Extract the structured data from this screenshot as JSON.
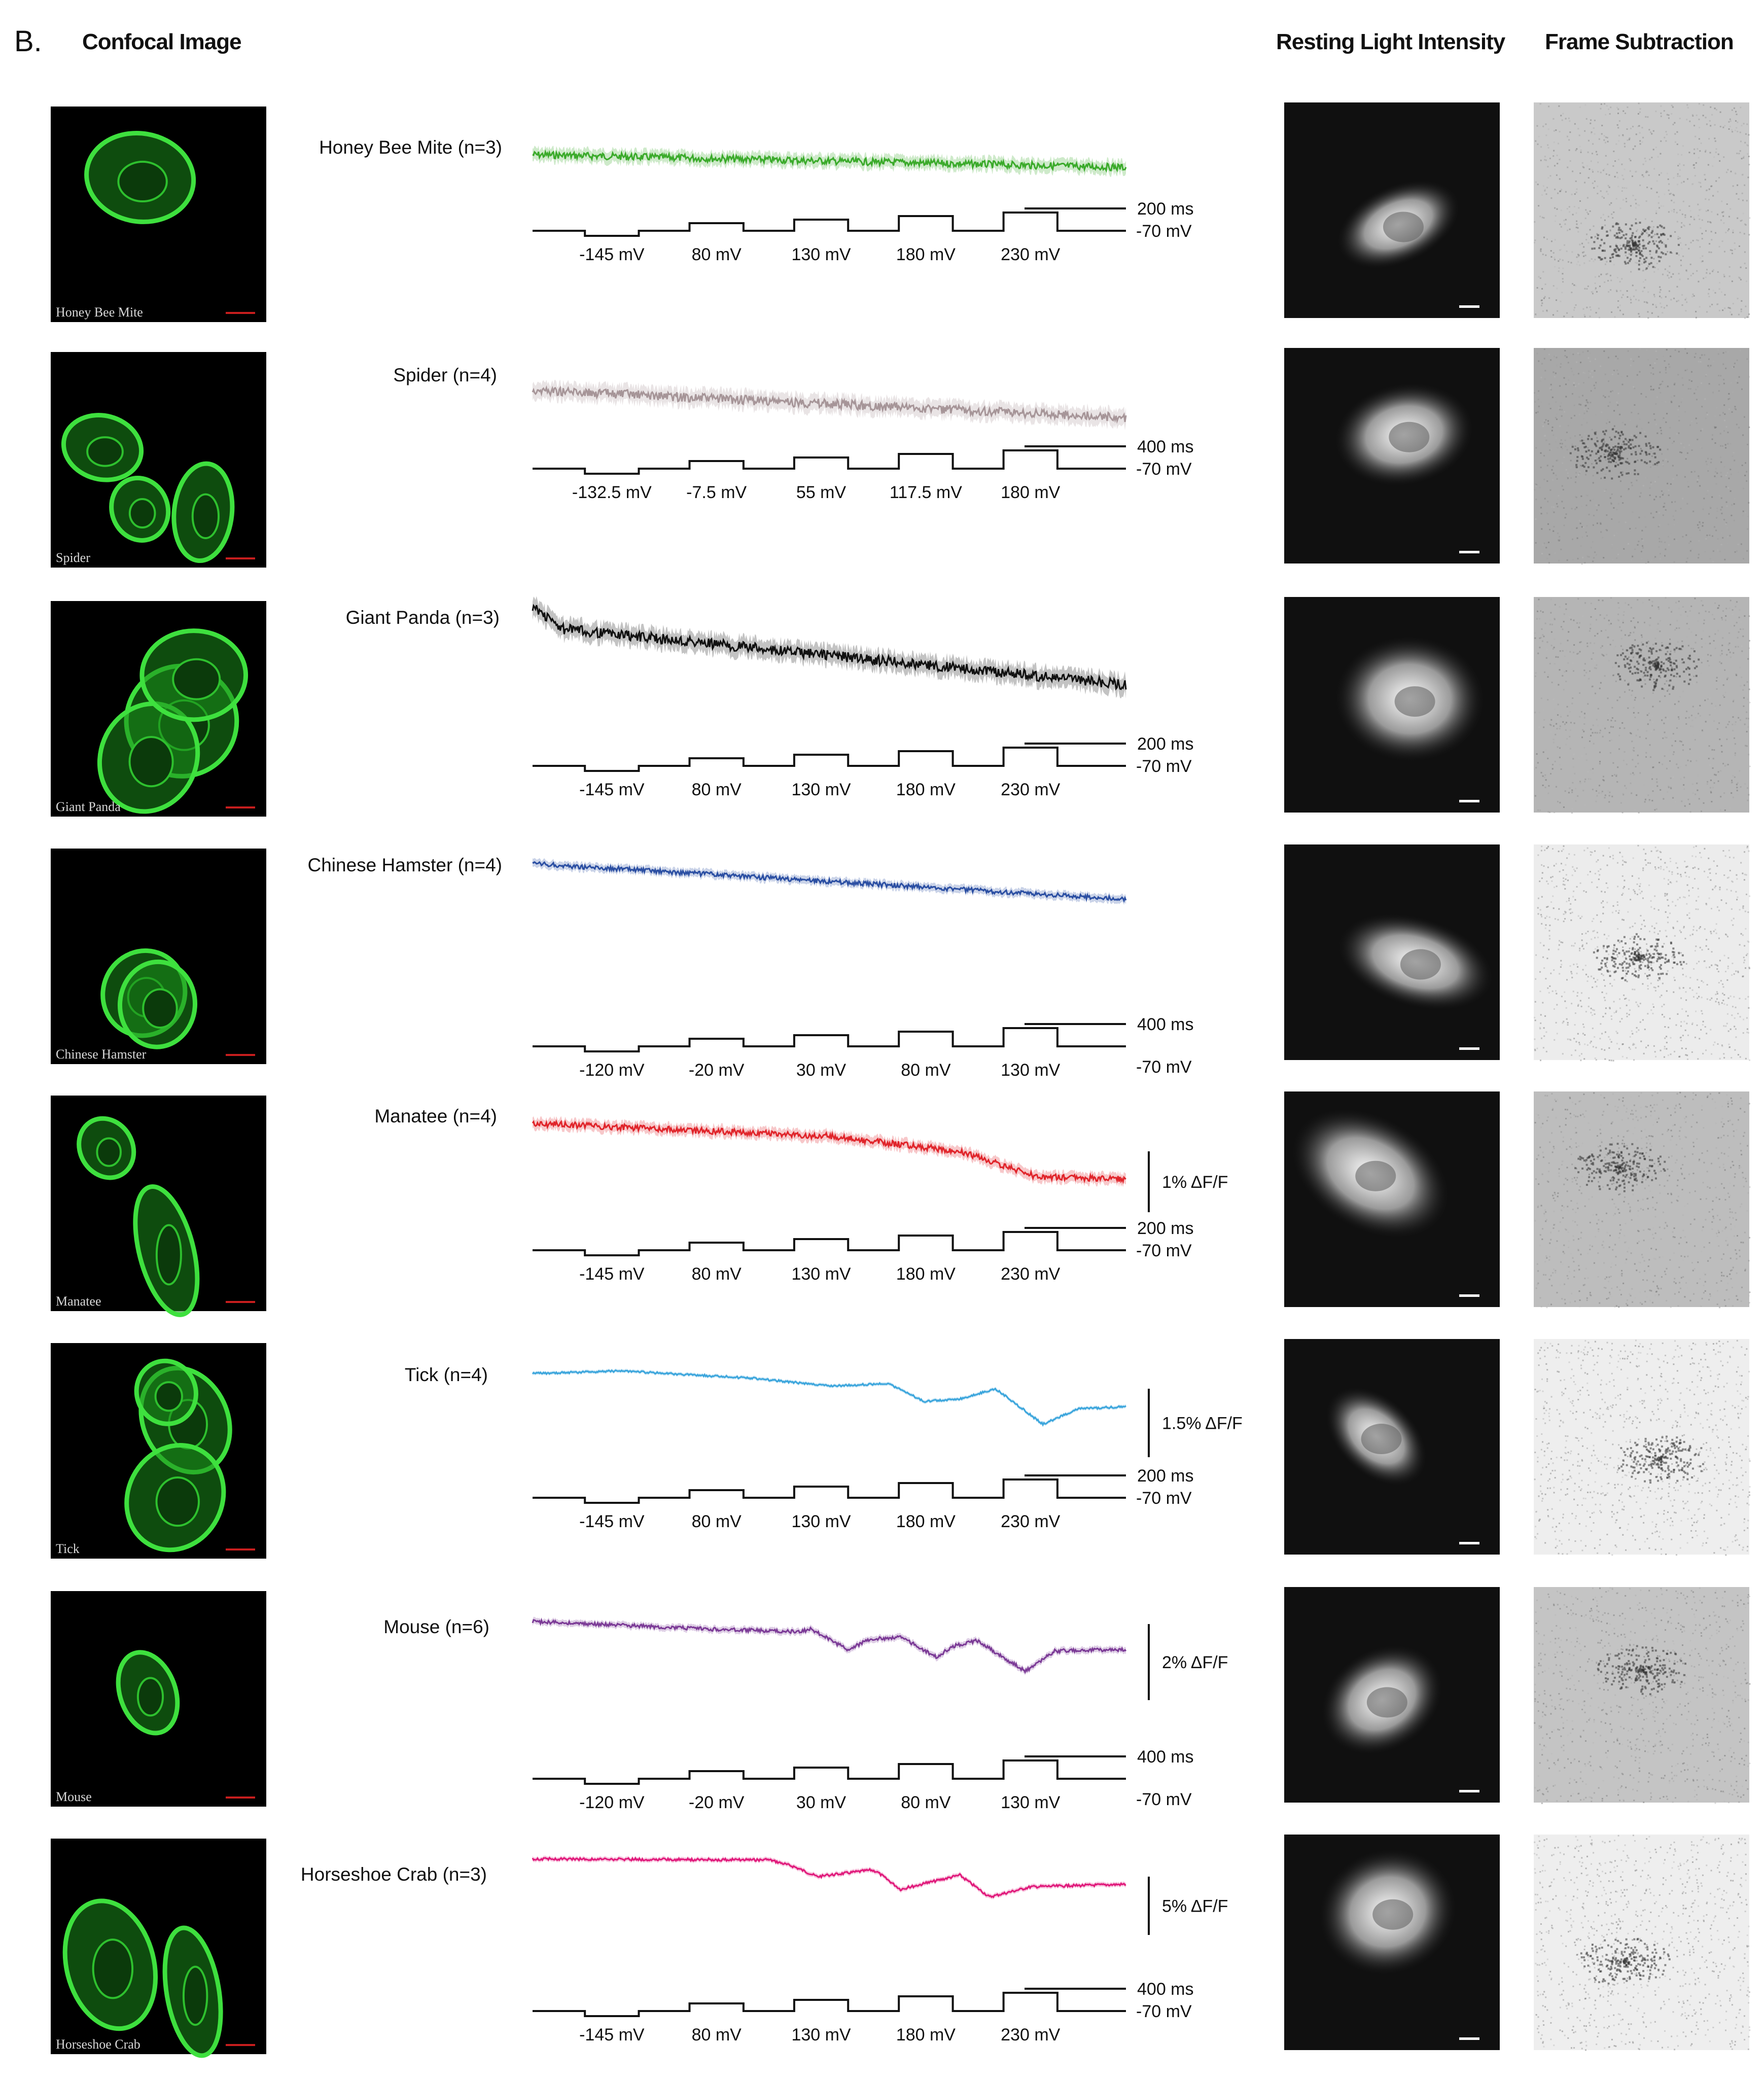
{
  "panel": {
    "letter": "B."
  },
  "headers": {
    "confocal": "Confocal Image",
    "resting": "Resting Light Intensity",
    "frame": "Frame Subtraction"
  },
  "rows": [
    {
      "name": "Honey Bee Mite",
      "label": "Honey Bee Mite (n=3)",
      "color": "#3aaa2a",
      "time_scale": "200 ms",
      "holding": "-70 mV",
      "steps": [
        "-145 mV",
        "80 mV",
        "130 mV",
        "180 mV",
        "230 mV"
      ],
      "df_scale": "",
      "fs_bg": "#c9c9c9"
    },
    {
      "name": "Spider",
      "label": "Spider (n=4)",
      "color": "#a69598",
      "time_scale": "400 ms",
      "holding": "-70 mV",
      "steps": [
        "-132.5 mV",
        "-7.5 mV",
        "55 mV",
        "117.5 mV",
        "180 mV"
      ],
      "df_scale": "",
      "fs_bg": "#a8a8a8"
    },
    {
      "name": "Giant Panda",
      "label": "Giant Panda (n=3)",
      "color": "#111111",
      "time_scale": "200 ms",
      "holding": "-70 mV",
      "steps": [
        "-145 mV",
        "80 mV",
        "130 mV",
        "180 mV",
        "230 mV"
      ],
      "df_scale": "",
      "fs_bg": "#b5b5b5"
    },
    {
      "name": "Chinese Hamster",
      "label": "Chinese Hamster (n=4)",
      "color": "#2a4ea2",
      "time_scale": "400 ms",
      "holding": "-70 mV",
      "steps": [
        "-120 mV",
        "-20 mV",
        "30 mV",
        "80 mV",
        "130 mV"
      ],
      "df_scale": "",
      "fs_bg": "#ececec"
    },
    {
      "name": "Manatee",
      "label": "Manatee (n=4)",
      "color": "#e0242a",
      "time_scale": "200 ms",
      "holding": "-70 mV",
      "steps": [
        "-145 mV",
        "80 mV",
        "130 mV",
        "180 mV",
        "230 mV"
      ],
      "df_scale": "1% ΔF/F",
      "fs_bg": "#bdbdbd"
    },
    {
      "name": "Tick",
      "label": "Tick (n=4)",
      "color": "#3aa5dc",
      "time_scale": "200 ms",
      "holding": "-70 mV",
      "steps": [
        "-145 mV",
        "80 mV",
        "130 mV",
        "180 mV",
        "230 mV"
      ],
      "df_scale": "1.5% ΔF/F",
      "fs_bg": "#eeeeee"
    },
    {
      "name": "Mouse",
      "label": "Mouse (n=6)",
      "color": "#7b3a96",
      "time_scale": "400 ms",
      "holding": "-70 mV",
      "steps": [
        "-120 mV",
        "-20 mV",
        "30 mV",
        "80 mV",
        "130 mV"
      ],
      "df_scale": "2% ΔF/F",
      "fs_bg": "#c4c4c4"
    },
    {
      "name": "Horseshoe Crab",
      "label": "Horseshoe Crab (n=3)",
      "color": "#e0187a",
      "time_scale": "400 ms",
      "holding": "-70 mV",
      "steps": [
        "-145 mV",
        "80 mV",
        "130 mV",
        "180 mV",
        "230 mV"
      ],
      "df_scale": "5% ΔF/F",
      "fs_bg": "#eeeeee"
    }
  ]
}
